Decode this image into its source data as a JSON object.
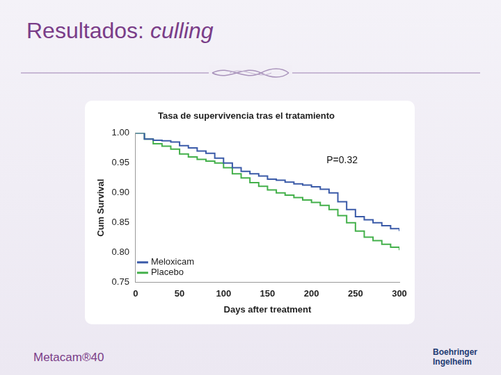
{
  "slide": {
    "title": "Resultados:",
    "title_emphasis": "culling",
    "footer_left": "Metacam®40",
    "footer_right": "Boehringer Ingelheim"
  },
  "chart_data": {
    "type": "line",
    "title": "Tasa de supervivencia tras el tratamiento",
    "x_label": "Days after treatment",
    "y_label": "Cum Survival",
    "annotation": "P=0.32",
    "x": [
      0,
      10,
      20,
      30,
      40,
      50,
      60,
      70,
      80,
      90,
      100,
      110,
      120,
      130,
      140,
      150,
      160,
      170,
      180,
      190,
      200,
      210,
      220,
      230,
      240,
      250,
      260,
      270,
      280,
      290,
      300
    ],
    "series": [
      {
        "name": "Meloxicam",
        "color": "#3a5aa8",
        "line_style": "stepped",
        "values": [
          1.0,
          0.99,
          0.988,
          0.987,
          0.985,
          0.979,
          0.975,
          0.97,
          0.966,
          0.958,
          0.95,
          0.942,
          0.936,
          0.932,
          0.928,
          0.923,
          0.921,
          0.918,
          0.915,
          0.913,
          0.91,
          0.906,
          0.9,
          0.885,
          0.872,
          0.86,
          0.855,
          0.85,
          0.845,
          0.84,
          0.836
        ]
      },
      {
        "name": "Placebo",
        "color": "#43b04a",
        "line_style": "stepped",
        "values": [
          1.0,
          0.99,
          0.982,
          0.978,
          0.973,
          0.965,
          0.96,
          0.956,
          0.953,
          0.95,
          0.942,
          0.932,
          0.925,
          0.917,
          0.911,
          0.905,
          0.9,
          0.896,
          0.892,
          0.888,
          0.884,
          0.879,
          0.872,
          0.862,
          0.85,
          0.836,
          0.826,
          0.82,
          0.814,
          0.809,
          0.804
        ]
      }
    ],
    "xlim": [
      0,
      300
    ],
    "xticks": [
      0,
      50,
      100,
      150,
      200,
      250,
      300
    ],
    "ylim": [
      0.75,
      1.0
    ],
    "yticks": [
      {
        "value": 0.75,
        "label": "0.75"
      },
      {
        "value": 0.8,
        "label": "0.80"
      },
      {
        "value": 0.85,
        "label": "0.85"
      },
      {
        "value": 0.9,
        "label": "0.90"
      },
      {
        "value": 0.95,
        "label": "0.95"
      },
      {
        "value": 1.0,
        "label": "1.00"
      }
    ],
    "grid": false,
    "legend": "lower left"
  }
}
